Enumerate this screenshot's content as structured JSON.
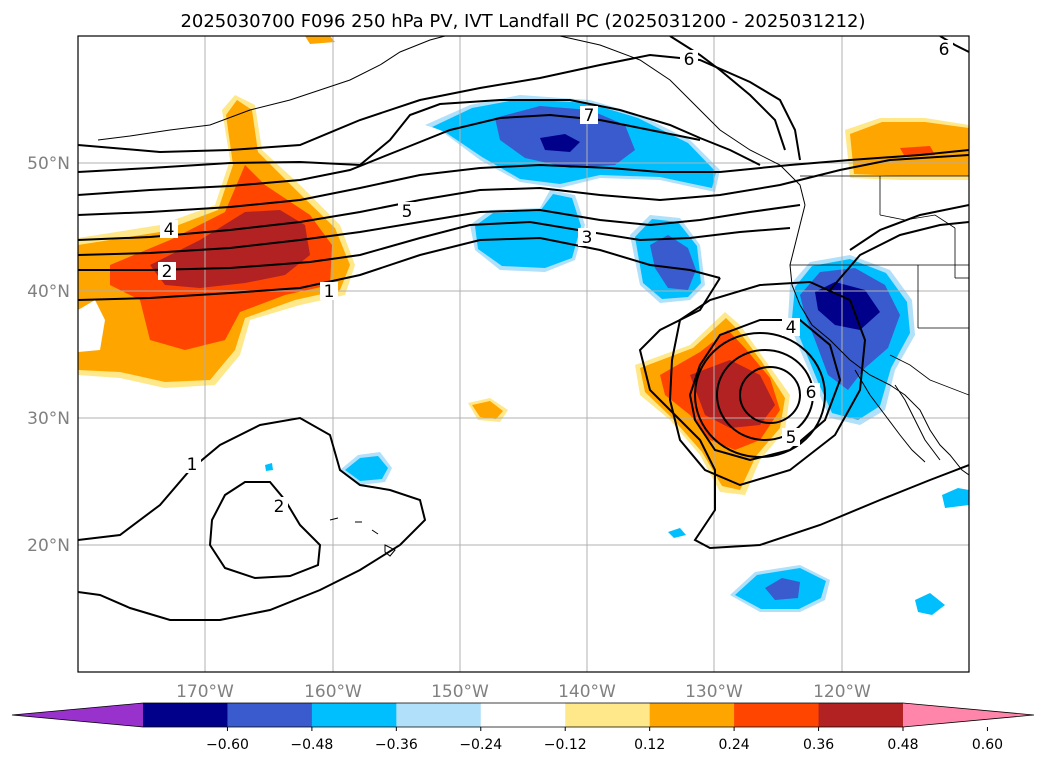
{
  "title": "2025030700 F096 250 hPa PV, IVT Landfall PC (2025031200 - 2025031212)",
  "map": {
    "lat_labels": [
      "50°N",
      "40°N",
      "30°N",
      "20°N"
    ],
    "lon_labels": [
      "170°W",
      "160°W",
      "150°W",
      "140°W",
      "130°W",
      "120°W"
    ],
    "contour_labels": [
      "7",
      "6",
      "6",
      "5",
      "4",
      "3",
      "2",
      "1",
      "1",
      "2",
      "4",
      "5",
      "6"
    ]
  },
  "colorbar": {
    "ticks": [
      "−0.60",
      "−0.48",
      "−0.36",
      "−0.24",
      "−0.12",
      "0.12",
      "0.24",
      "0.36",
      "0.48",
      "0.60"
    ],
    "colors": [
      "#9932cc",
      "#00008b",
      "#3a5bcd",
      "#00bfff",
      "#b0e0fa",
      "#ffffff",
      "#ffe88a",
      "#ffa500",
      "#ff4500",
      "#b22222",
      "#ff85aa"
    ]
  },
  "fill_colors": {
    "neg_light": "#b0e0fa",
    "neg_mid": "#00bfff",
    "neg_strong": "#3a5bcd",
    "neg_max": "#00008b",
    "pos_light": "#ffe88a",
    "pos_mid": "#ffa500",
    "pos_strong": "#ff4500",
    "pos_max": "#b22222"
  }
}
